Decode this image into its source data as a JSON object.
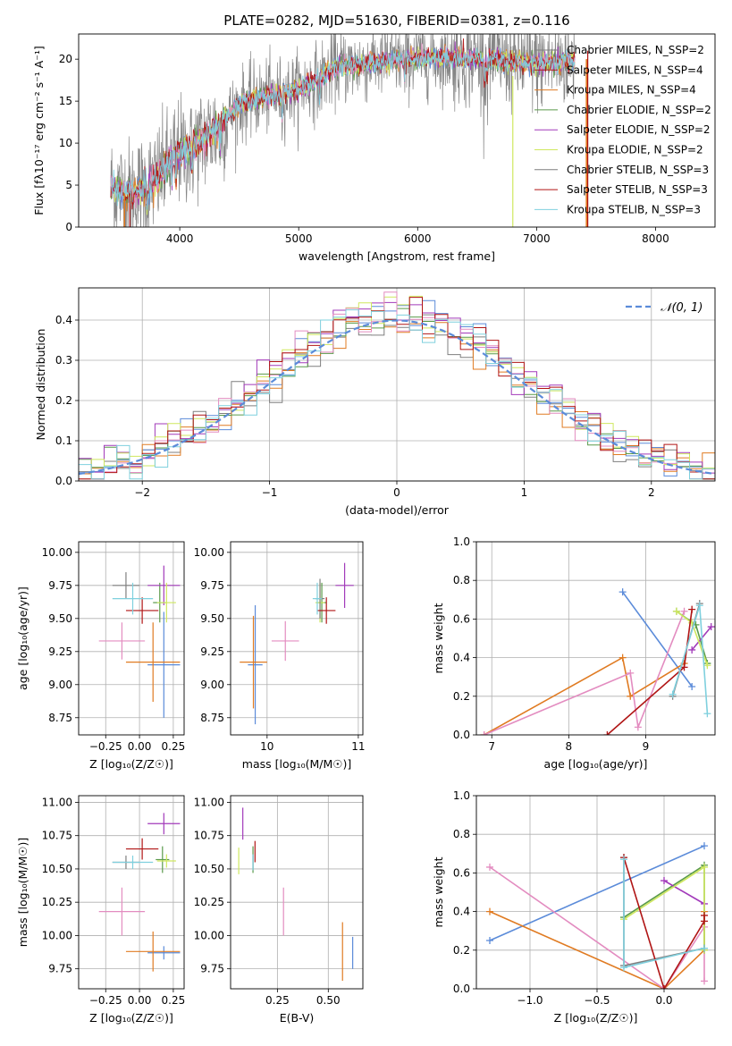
{
  "colors": {
    "grid": "#b0b0b0",
    "axis": "#000000",
    "s_blue": "#5b8bd9",
    "s_orange": "#e07b22",
    "s_pink": "#e38cc0",
    "s_green": "#5a9a4a",
    "s_purple": "#a23aba",
    "s_yellow": "#cfe85f",
    "s_gray": "#7f7f7f",
    "s_red": "#b01515",
    "s_cyan": "#7fd0de",
    "gauss": "#5b8bd9"
  },
  "chart_data": [
    {
      "id": "spectrum",
      "type": "line",
      "title": "PLATE=0282, MJD=51630, FIBERID=0381, z=0.116",
      "xlabel": "wavelength [Angstrom, rest frame]",
      "ylabel": "Flux [fλ10⁻¹⁷ erg cm⁻² s⁻¹ A⁻¹]",
      "xlim": [
        3150,
        8500
      ],
      "ylim": [
        0,
        23
      ],
      "xticks": [
        4000,
        5000,
        6000,
        7000,
        8000
      ],
      "yticks": [
        0,
        5,
        10,
        15,
        20
      ],
      "legend_position": "upper right",
      "legend": [
        "Chabrier MILES, N_SSP=2",
        "Salpeter MILES, N_SSP=4",
        "Kroupa MILES, N_SSP=4",
        "Chabrier ELODIE, N_SSP=2",
        "Salpeter ELODIE, N_SSP=2",
        "Kroupa ELODIE, N_SSP=2",
        "Chabrier STELIB, N_SSP=3",
        "Salpeter STELIB, N_SSP=3",
        "Kroupa STELIB, N_SSP=3"
      ],
      "continuum": [
        [
          3420,
          4.8
        ],
        [
          3600,
          4.0
        ],
        [
          3800,
          5.5
        ],
        [
          3950,
          8.5
        ],
        [
          4100,
          9.5
        ],
        [
          4300,
          11.5
        ],
        [
          4500,
          14.5
        ],
        [
          4700,
          15.5
        ],
        [
          4900,
          16.0
        ],
        [
          5100,
          17.0
        ],
        [
          5300,
          19.0
        ],
        [
          5600,
          19.5
        ],
        [
          5900,
          20.0
        ],
        [
          6200,
          20.2
        ],
        [
          6600,
          20.0
        ],
        [
          7000,
          19.5
        ],
        [
          7300,
          19.8
        ]
      ]
    },
    {
      "id": "residual-histogram",
      "type": "histogram",
      "xlabel": "(data-model)/error",
      "ylabel": "Normed distribution",
      "xlim": [
        -2.5,
        2.5
      ],
      "ylim": [
        0,
        0.48
      ],
      "xticks": [
        -2,
        -1,
        0,
        1,
        2
      ],
      "yticks": [
        0.0,
        0.1,
        0.2,
        0.3,
        0.4
      ],
      "legend": [
        "𝒩(0, 1)"
      ],
      "legend_position": "upper right",
      "bin_width": 0.1
    },
    {
      "id": "age-vs-Z",
      "type": "errorbar",
      "xlabel": "Z [log₁₀(Z/Z☉)]",
      "ylabel": "age  [log₁₀(age/yr)]",
      "xlim": [
        -0.45,
        0.33
      ],
      "ylim": [
        8.62,
        10.08
      ],
      "xticks": [
        -0.25,
        0.0,
        0.25
      ],
      "yticks": [
        8.75,
        9.0,
        9.25,
        9.5,
        9.75,
        10.0
      ],
      "points": [
        {
          "c": "s_blue",
          "x": 0.18,
          "y": 9.15,
          "xe": 0.12,
          "ye": 0.4
        },
        {
          "c": "s_orange",
          "x": 0.1,
          "y": 9.17,
          "xe": 0.2,
          "ye": 0.3
        },
        {
          "c": "s_pink",
          "x": -0.13,
          "y": 9.33,
          "xe": 0.17,
          "ye": 0.14
        },
        {
          "c": "s_green",
          "x": 0.15,
          "y": 9.62,
          "xe": 0.05,
          "ye": 0.15
        },
        {
          "c": "s_purple",
          "x": 0.18,
          "y": 9.75,
          "xe": 0.12,
          "ye": 0.15
        },
        {
          "c": "s_yellow",
          "x": 0.2,
          "y": 9.62,
          "xe": 0.07,
          "ye": 0.15
        },
        {
          "c": "s_gray",
          "x": -0.1,
          "y": 9.75,
          "xe": 0.1,
          "ye": 0.1
        },
        {
          "c": "s_red",
          "x": 0.02,
          "y": 9.56,
          "xe": 0.12,
          "ye": 0.1
        },
        {
          "c": "s_cyan",
          "x": -0.05,
          "y": 9.65,
          "xe": 0.15,
          "ye": 0.12
        }
      ]
    },
    {
      "id": "age-vs-mass",
      "type": "errorbar",
      "xlabel": "mass [log₁₀(M/M☉)]",
      "ylabel": "",
      "xlim": [
        9.6,
        11.05
      ],
      "ylim": [
        8.62,
        10.08
      ],
      "xticks": [
        10,
        11
      ],
      "yticks": [
        8.75,
        9.0,
        9.25,
        9.5,
        9.75,
        10.0
      ],
      "points": [
        {
          "c": "s_blue",
          "x": 9.87,
          "y": 9.15,
          "xe": 0.08,
          "ye": 0.45
        },
        {
          "c": "s_orange",
          "x": 9.85,
          "y": 9.17,
          "xe": 0.15,
          "ye": 0.35
        },
        {
          "c": "s_pink",
          "x": 10.2,
          "y": 9.33,
          "xe": 0.15,
          "ye": 0.15
        },
        {
          "c": "s_green",
          "x": 10.6,
          "y": 9.62,
          "xe": 0.05,
          "ye": 0.15
        },
        {
          "c": "s_purple",
          "x": 10.85,
          "y": 9.75,
          "xe": 0.1,
          "ye": 0.17
        },
        {
          "c": "s_yellow",
          "x": 10.58,
          "y": 9.62,
          "xe": 0.05,
          "ye": 0.15
        },
        {
          "c": "s_gray",
          "x": 10.58,
          "y": 9.65,
          "xe": 0.05,
          "ye": 0.15
        },
        {
          "c": "s_red",
          "x": 10.65,
          "y": 9.56,
          "xe": 0.1,
          "ye": 0.1
        },
        {
          "c": "s_cyan",
          "x": 10.55,
          "y": 9.65,
          "xe": 0.05,
          "ye": 0.12
        }
      ]
    },
    {
      "id": "mass-weight-vs-age",
      "type": "line",
      "xlabel": "age  [log₁₀(age/yr)]",
      "ylabel": "mass weight",
      "xlim": [
        6.8,
        9.9
      ],
      "ylim": [
        0,
        1
      ],
      "xticks": [
        7,
        8,
        9
      ],
      "yticks": [
        0.0,
        0.2,
        0.4,
        0.6,
        0.8,
        1.0
      ],
      "series": [
        {
          "c": "s_blue",
          "x": [
            8.7,
            9.6
          ],
          "y": [
            0.74,
            0.25
          ]
        },
        {
          "c": "s_orange",
          "x": [
            6.9,
            8.7,
            8.8,
            9.5
          ],
          "y": [
            0.0,
            0.4,
            0.2,
            0.37
          ]
        },
        {
          "c": "s_pink",
          "x": [
            6.9,
            8.8,
            8.9,
            9.5
          ],
          "y": [
            0.0,
            0.32,
            0.04,
            0.64
          ]
        },
        {
          "c": "s_green",
          "x": [
            9.4,
            9.65,
            9.8
          ],
          "y": [
            0.64,
            0.57,
            0.37
          ]
        },
        {
          "c": "s_purple",
          "x": [
            9.6,
            9.85
          ],
          "y": [
            0.44,
            0.56
          ]
        },
        {
          "c": "s_yellow",
          "x": [
            9.4,
            9.6,
            9.8
          ],
          "y": [
            0.64,
            0.58,
            0.36
          ]
        },
        {
          "c": "s_gray",
          "x": [
            9.35,
            9.7
          ],
          "y": [
            0.2,
            0.68
          ]
        },
        {
          "c": "s_red",
          "x": [
            8.5,
            9.5,
            9.6
          ],
          "y": [
            0.0,
            0.35,
            0.65
          ]
        },
        {
          "c": "s_cyan",
          "x": [
            9.35,
            9.7,
            9.8
          ],
          "y": [
            0.21,
            0.67,
            0.11
          ]
        }
      ]
    },
    {
      "id": "mass-vs-Z",
      "type": "errorbar",
      "xlabel": "Z [log₁₀(Z/Z☉)]",
      "ylabel": "mass [log₁₀(M/M☉)]",
      "xlim": [
        -0.45,
        0.33
      ],
      "ylim": [
        9.6,
        11.05
      ],
      "xticks": [
        -0.25,
        0.0,
        0.25
      ],
      "yticks": [
        9.75,
        10.0,
        10.25,
        10.5,
        10.75,
        11.0
      ],
      "points": [
        {
          "c": "s_blue",
          "x": 0.18,
          "y": 9.87,
          "xe": 0.12,
          "ye": 0.05
        },
        {
          "c": "s_orange",
          "x": 0.1,
          "y": 9.88,
          "xe": 0.2,
          "ye": 0.15
        },
        {
          "c": "s_pink",
          "x": -0.13,
          "y": 10.18,
          "xe": 0.17,
          "ye": 0.18
        },
        {
          "c": "s_green",
          "x": 0.17,
          "y": 10.57,
          "xe": 0.05,
          "ye": 0.1
        },
        {
          "c": "s_purple",
          "x": 0.18,
          "y": 10.84,
          "xe": 0.12,
          "ye": 0.08
        },
        {
          "c": "s_yellow",
          "x": 0.2,
          "y": 10.56,
          "xe": 0.07,
          "ye": 0.05
        },
        {
          "c": "s_gray",
          "x": -0.1,
          "y": 10.55,
          "xe": 0.1,
          "ye": 0.05
        },
        {
          "c": "s_red",
          "x": 0.02,
          "y": 10.65,
          "xe": 0.12,
          "ye": 0.08
        },
        {
          "c": "s_cyan",
          "x": -0.05,
          "y": 10.55,
          "xe": 0.15,
          "ye": 0.05
        }
      ]
    },
    {
      "id": "mass-vs-ebv",
      "type": "errorbar",
      "xlabel": "E(B-V)",
      "ylabel": "",
      "xlim": [
        0.02,
        0.67
      ],
      "ylim": [
        9.6,
        11.05
      ],
      "xticks": [
        0.25,
        0.5
      ],
      "yticks": [
        9.75,
        10.0,
        10.25,
        10.5,
        10.75,
        11.0
      ],
      "points": [
        {
          "c": "s_blue",
          "x": 0.62,
          "y": 9.87,
          "xe": 0.0,
          "ye": 0.12
        },
        {
          "c": "s_orange",
          "x": 0.57,
          "y": 9.88,
          "xe": 0.0,
          "ye": 0.22
        },
        {
          "c": "s_pink",
          "x": 0.28,
          "y": 10.18,
          "xe": 0.0,
          "ye": 0.18
        },
        {
          "c": "s_green",
          "x": 0.13,
          "y": 10.57,
          "xe": 0.0,
          "ye": 0.1
        },
        {
          "c": "s_purple",
          "x": 0.08,
          "y": 10.84,
          "xe": 0.0,
          "ye": 0.12
        },
        {
          "c": "s_yellow",
          "x": 0.06,
          "y": 10.56,
          "xe": 0.0,
          "ye": 0.1
        },
        {
          "c": "s_gray",
          "x": 0.13,
          "y": 10.55,
          "xe": 0.0,
          "ye": 0.06
        },
        {
          "c": "s_red",
          "x": 0.14,
          "y": 10.63,
          "xe": 0.0,
          "ye": 0.08
        },
        {
          "c": "s_cyan",
          "x": 0.13,
          "y": 10.55,
          "xe": 0.0,
          "ye": 0.06
        }
      ]
    },
    {
      "id": "mass-weight-vs-Z",
      "type": "line",
      "xlabel": "Z [log₁₀(Z/Z☉)]",
      "ylabel": "mass weight",
      "xlim": [
        -1.4,
        0.38
      ],
      "ylim": [
        0,
        1
      ],
      "xticks": [
        -1.0,
        -0.5,
        0.0
      ],
      "yticks": [
        0.0,
        0.2,
        0.4,
        0.6,
        0.8,
        1.0
      ],
      "series": [
        {
          "c": "s_blue",
          "x": [
            -1.3,
            0.3
          ],
          "y": [
            0.25,
            0.74
          ]
        },
        {
          "c": "s_orange",
          "x": [
            -1.3,
            0.0,
            0.3,
            0.3
          ],
          "y": [
            0.4,
            0.0,
            0.2,
            0.4
          ]
        },
        {
          "c": "s_pink",
          "x": [
            -1.3,
            0.0,
            0.3,
            0.3
          ],
          "y": [
            0.63,
            0.0,
            0.32,
            0.04
          ]
        },
        {
          "c": "s_green",
          "x": [
            -0.3,
            0.3,
            0.3
          ],
          "y": [
            0.37,
            0.64,
            0.2
          ]
        },
        {
          "c": "s_purple",
          "x": [
            0.0,
            0.3
          ],
          "y": [
            0.56,
            0.44
          ]
        },
        {
          "c": "s_yellow",
          "x": [
            -0.3,
            0.3,
            0.3
          ],
          "y": [
            0.36,
            0.63,
            0.2
          ]
        },
        {
          "c": "s_gray",
          "x": [
            -0.3,
            -0.3,
            0.3
          ],
          "y": [
            0.68,
            0.12,
            0.21
          ]
        },
        {
          "c": "s_red",
          "x": [
            -0.3,
            0.0,
            0.3,
            0.3
          ],
          "y": [
            0.68,
            0.0,
            0.35,
            0.38
          ]
        },
        {
          "c": "s_cyan",
          "x": [
            -0.3,
            -0.3,
            0.3
          ],
          "y": [
            0.67,
            0.11,
            0.21
          ]
        }
      ]
    }
  ]
}
